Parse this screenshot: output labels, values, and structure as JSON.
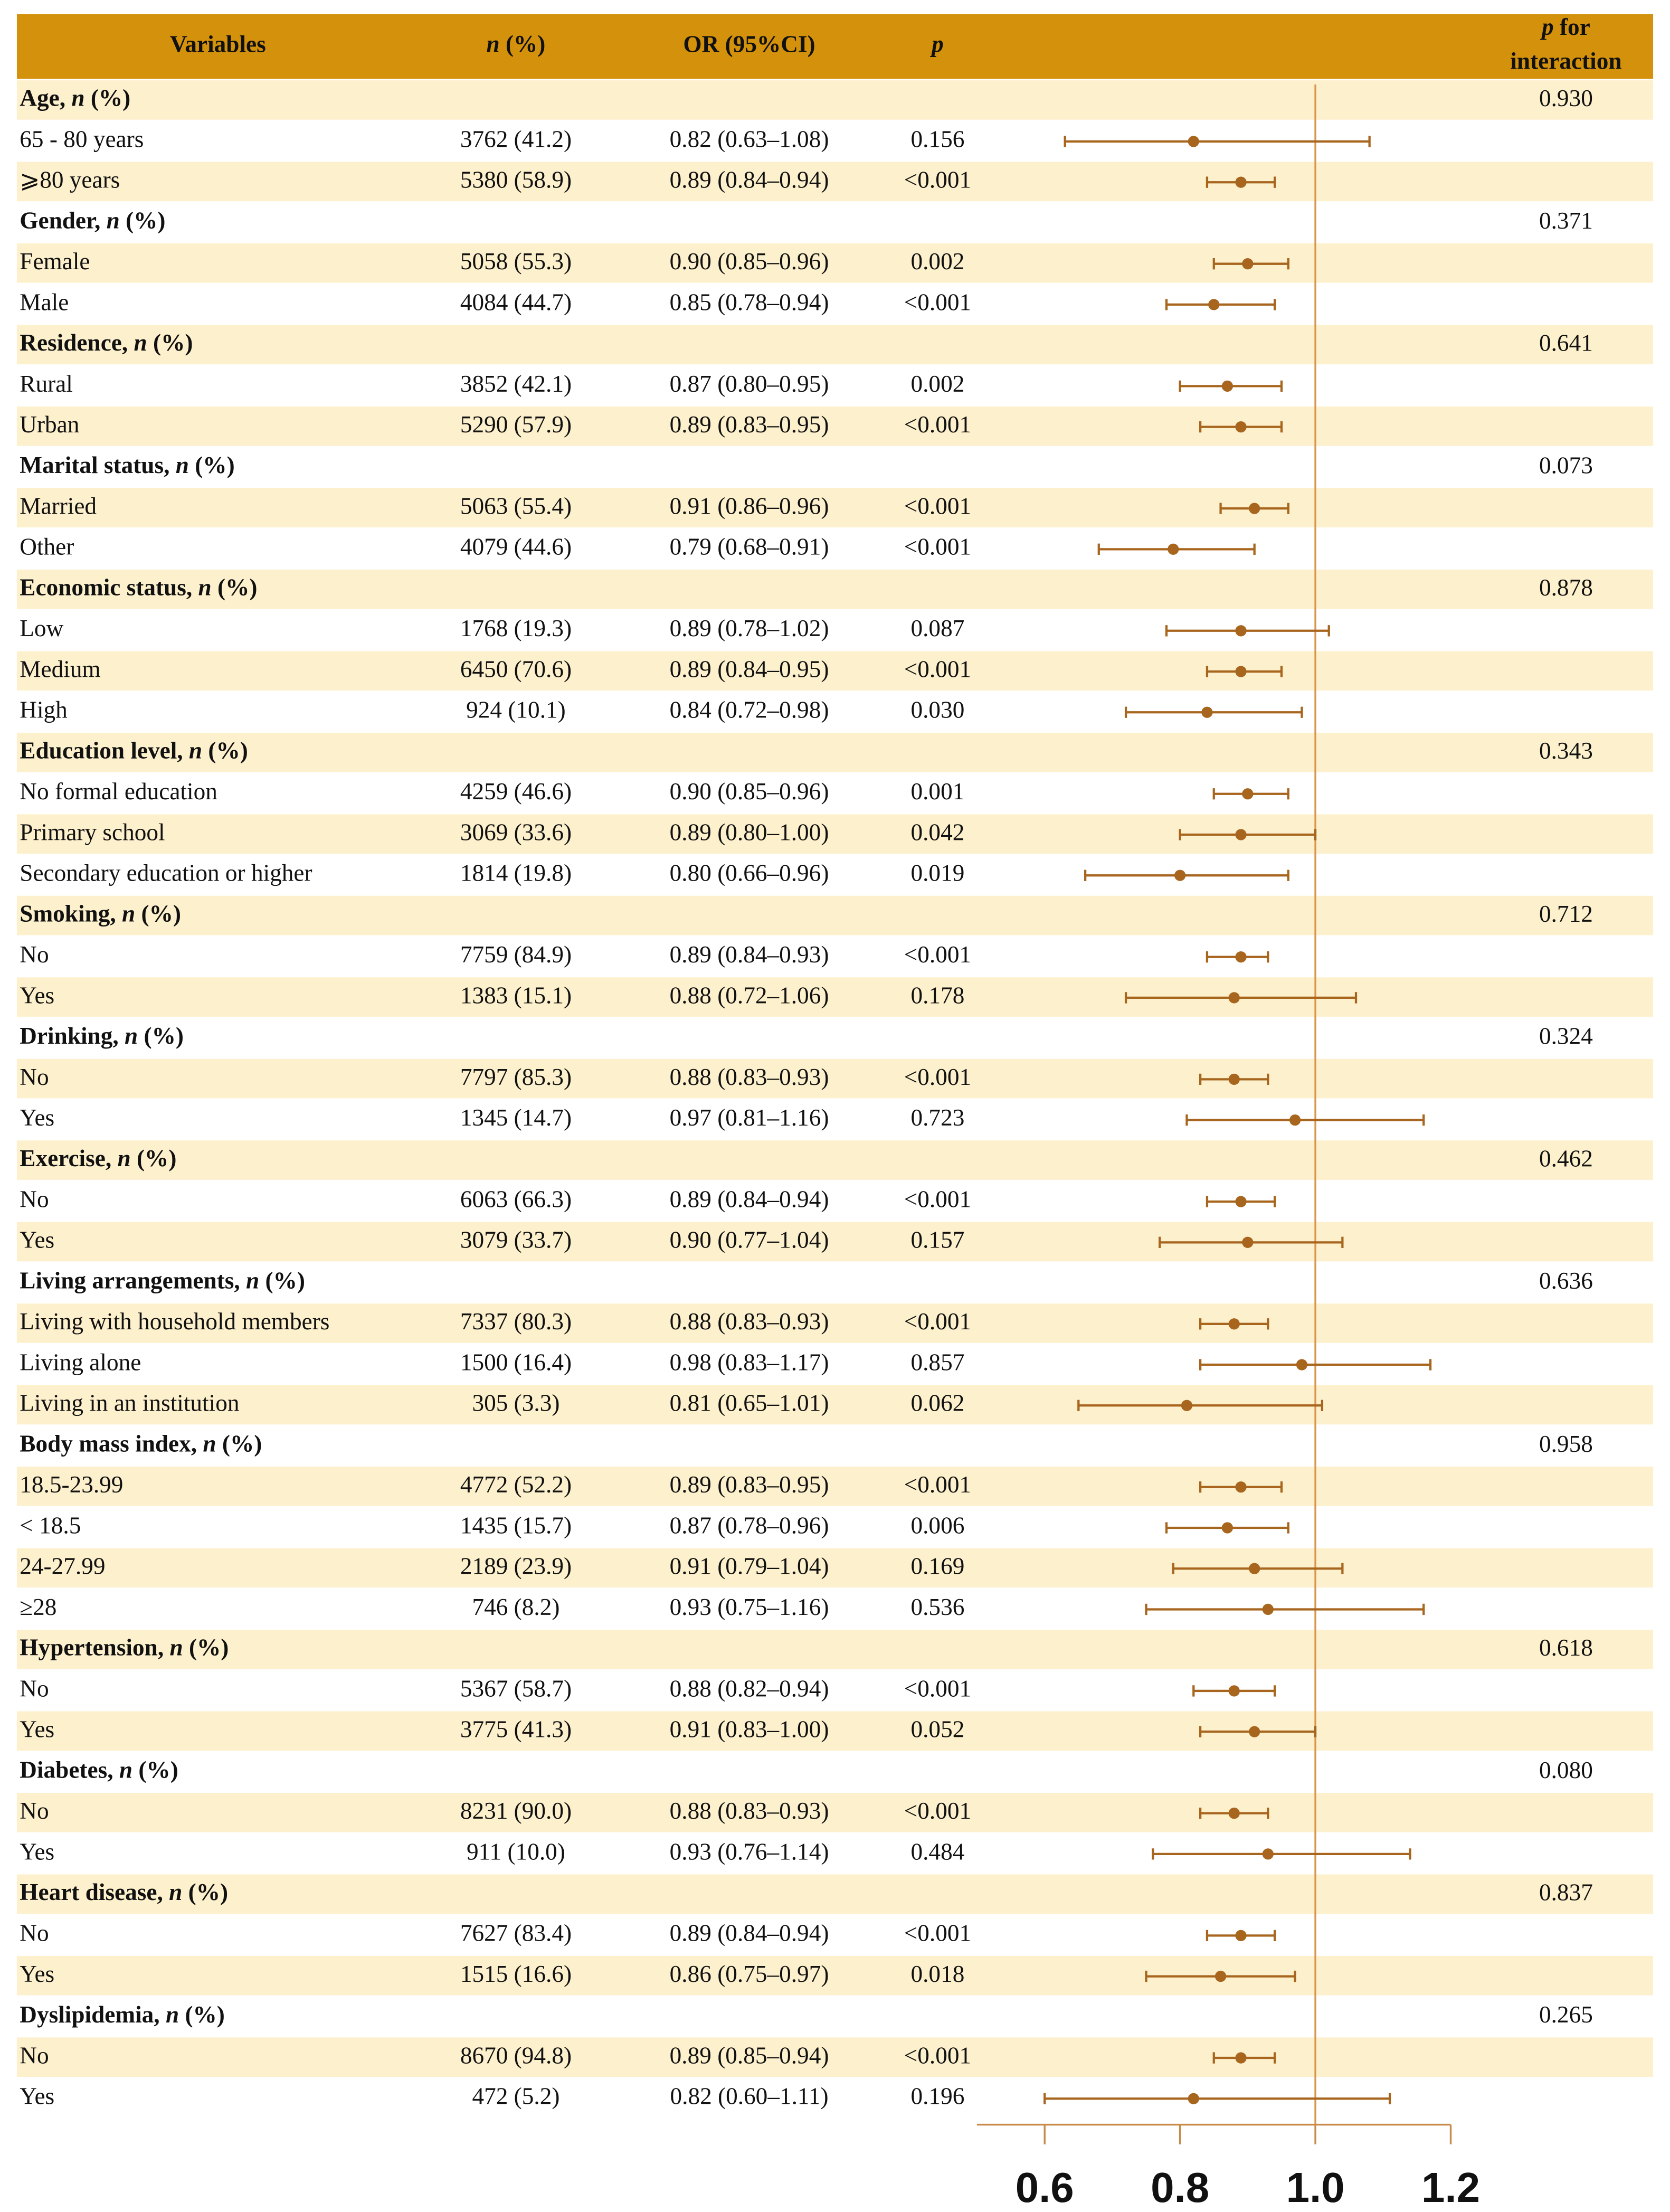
{
  "chart_data": {
    "type": "forest",
    "header": {
      "variables": "Variables",
      "n_pct": [
        "n",
        " (%)"
      ],
      "or_ci": "OR (95%CI)",
      "p": "p",
      "p_interaction": [
        [
          "p",
          " for"
        ],
        "interaction"
      ]
    },
    "groups": [
      {
        "label": [
          "Age, ",
          "n",
          " (%)"
        ],
        "p_interaction": "0.930",
        "rows": [
          {
            "label": "65 - 80 years",
            "n_pct": "3762 (41.2)",
            "or_ci": "0.82 (0.63–1.08)",
            "p": "0.156",
            "or": 0.82,
            "ci": [
              0.63,
              1.08
            ]
          },
          {
            "label": "⩾80 years",
            "n_pct": "5380 (58.9)",
            "or_ci": "0.89 (0.84–0.94)",
            "p": "<0.001",
            "or": 0.89,
            "ci": [
              0.84,
              0.94
            ]
          }
        ]
      },
      {
        "label": [
          "Gender, ",
          "n",
          " (%)"
        ],
        "p_interaction": "0.371",
        "rows": [
          {
            "label": "Female",
            "n_pct": "5058 (55.3)",
            "or_ci": "0.90 (0.85–0.96)",
            "p": "0.002",
            "or": 0.9,
            "ci": [
              0.85,
              0.96
            ]
          },
          {
            "label": "Male",
            "n_pct": "4084 (44.7)",
            "or_ci": "0.85 (0.78–0.94)",
            "p": "<0.001",
            "or": 0.85,
            "ci": [
              0.78,
              0.94
            ]
          }
        ]
      },
      {
        "label": [
          "Residence, ",
          "n",
          " (%)"
        ],
        "p_interaction": "0.641",
        "rows": [
          {
            "label": "Rural",
            "n_pct": "3852 (42.1)",
            "or_ci": "0.87 (0.80–0.95)",
            "p": "0.002",
            "or": 0.87,
            "ci": [
              0.8,
              0.95
            ]
          },
          {
            "label": "Urban",
            "n_pct": "5290 (57.9)",
            "or_ci": "0.89 (0.83–0.95)",
            "p": "<0.001",
            "or": 0.89,
            "ci": [
              0.83,
              0.95
            ]
          }
        ]
      },
      {
        "label": [
          "Marital status, ",
          "n",
          " (%)"
        ],
        "p_interaction": "0.073",
        "rows": [
          {
            "label": "Married",
            "n_pct": "5063 (55.4)",
            "or_ci": "0.91 (0.86–0.96)",
            "p": "<0.001",
            "or": 0.91,
            "ci": [
              0.86,
              0.96
            ]
          },
          {
            "label": "Other",
            "n_pct": "4079 (44.6)",
            "or_ci": "0.79 (0.68–0.91)",
            "p": "<0.001",
            "or": 0.79,
            "ci": [
              0.68,
              0.91
            ]
          }
        ]
      },
      {
        "label": [
          "Economic status, ",
          "n",
          " (%)"
        ],
        "p_interaction": "0.878",
        "rows": [
          {
            "label": "Low",
            "n_pct": "1768 (19.3)",
            "or_ci": "0.89 (0.78–1.02)",
            "p": "0.087",
            "or": 0.89,
            "ci": [
              0.78,
              1.02
            ]
          },
          {
            "label": "Medium",
            "n_pct": "6450 (70.6)",
            "or_ci": "0.89 (0.84–0.95)",
            "p": "<0.001",
            "or": 0.89,
            "ci": [
              0.84,
              0.95
            ]
          },
          {
            "label": "High",
            "n_pct": "924 (10.1)",
            "or_ci": "0.84 (0.72–0.98)",
            "p": "0.030",
            "or": 0.84,
            "ci": [
              0.72,
              0.98
            ]
          }
        ]
      },
      {
        "label": [
          "Education level, ",
          "n",
          " (%)"
        ],
        "p_interaction": "0.343",
        "rows": [
          {
            "label": "No formal education",
            "n_pct": "4259 (46.6)",
            "or_ci": "0.90 (0.85–0.96)",
            "p": "0.001",
            "or": 0.9,
            "ci": [
              0.85,
              0.96
            ]
          },
          {
            "label": "Primary school",
            "n_pct": "3069 (33.6)",
            "or_ci": "0.89 (0.80–1.00)",
            "p": "0.042",
            "or": 0.89,
            "ci": [
              0.8,
              1.0
            ]
          },
          {
            "label": "Secondary education or higher",
            "n_pct": "1814 (19.8)",
            "or_ci": "0.80 (0.66–0.96)",
            "p": "0.019",
            "or": 0.8,
            "ci": [
              0.66,
              0.96
            ]
          }
        ]
      },
      {
        "label": [
          "Smoking, ",
          "n",
          " (%)"
        ],
        "p_interaction": "0.712",
        "rows": [
          {
            "label": "No",
            "n_pct": "7759 (84.9)",
            "or_ci": "0.89 (0.84–0.93)",
            "p": "<0.001",
            "or": 0.89,
            "ci": [
              0.84,
              0.93
            ]
          },
          {
            "label": "Yes",
            "n_pct": "1383 (15.1)",
            "or_ci": "0.88 (0.72–1.06)",
            "p": "0.178",
            "or": 0.88,
            "ci": [
              0.72,
              1.06
            ]
          }
        ]
      },
      {
        "label": [
          "Drinking, ",
          "n",
          " (%)"
        ],
        "p_interaction": "0.324",
        "rows": [
          {
            "label": "No",
            "n_pct": "7797 (85.3)",
            "or_ci": "0.88 (0.83–0.93)",
            "p": "<0.001",
            "or": 0.88,
            "ci": [
              0.83,
              0.93
            ]
          },
          {
            "label": "Yes",
            "n_pct": "1345 (14.7)",
            "or_ci": "0.97 (0.81–1.16)",
            "p": "0.723",
            "or": 0.97,
            "ci": [
              0.81,
              1.16
            ]
          }
        ]
      },
      {
        "label": [
          "Exercise, ",
          "n",
          " (%)"
        ],
        "p_interaction": "0.462",
        "rows": [
          {
            "label": "No",
            "n_pct": "6063 (66.3)",
            "or_ci": "0.89 (0.84–0.94)",
            "p": "<0.001",
            "or": 0.89,
            "ci": [
              0.84,
              0.94
            ]
          },
          {
            "label": "Yes",
            "n_pct": "3079 (33.7)",
            "or_ci": "0.90 (0.77–1.04)",
            "p": "0.157",
            "or": 0.9,
            "ci": [
              0.77,
              1.04
            ]
          }
        ]
      },
      {
        "label": [
          "Living arrangements, ",
          "n",
          " (%)"
        ],
        "p_interaction": "0.636",
        "rows": [
          {
            "label": "Living with household members",
            "n_pct": "7337 (80.3)",
            "or_ci": "0.88 (0.83–0.93)",
            "p": "<0.001",
            "or": 0.88,
            "ci": [
              0.83,
              0.93
            ]
          },
          {
            "label": "Living alone",
            "n_pct": "1500 (16.4)",
            "or_ci": "0.98 (0.83–1.17)",
            "p": "0.857",
            "or": 0.98,
            "ci": [
              0.83,
              1.17
            ]
          },
          {
            "label": "Living in an institution",
            "n_pct": "305 (3.3)",
            "or_ci": "0.81 (0.65–1.01)",
            "p": "0.062",
            "or": 0.81,
            "ci": [
              0.65,
              1.01
            ]
          }
        ]
      },
      {
        "label": [
          "Body mass index, ",
          "n",
          " (%)"
        ],
        "p_interaction": "0.958",
        "rows": [
          {
            "label": "18.5-23.99",
            "n_pct": "4772 (52.2)",
            "or_ci": "0.89 (0.83–0.95)",
            "p": "<0.001",
            "or": 0.89,
            "ci": [
              0.83,
              0.95
            ]
          },
          {
            "label": "< 18.5",
            "n_pct": "1435 (15.7)",
            "or_ci": "0.87 (0.78–0.96)",
            "p": "0.006",
            "or": 0.87,
            "ci": [
              0.78,
              0.96
            ]
          },
          {
            "label": "24-27.99",
            "n_pct": "2189 (23.9)",
            "or_ci": "0.91 (0.79–1.04)",
            "p": "0.169",
            "or": 0.91,
            "ci": [
              0.79,
              1.04
            ]
          },
          {
            "label": "≥28",
            "n_pct": "746 (8.2)",
            "or_ci": "0.93 (0.75–1.16)",
            "p": "0.536",
            "or": 0.93,
            "ci": [
              0.75,
              1.16
            ]
          }
        ]
      },
      {
        "label": [
          "Hypertension, ",
          "n",
          " (%)"
        ],
        "p_interaction": "0.618",
        "rows": [
          {
            "label": "No",
            "n_pct": "5367 (58.7)",
            "or_ci": "0.88 (0.82–0.94)",
            "p": "<0.001",
            "or": 0.88,
            "ci": [
              0.82,
              0.94
            ]
          },
          {
            "label": "Yes",
            "n_pct": "3775 (41.3)",
            "or_ci": "0.91 (0.83–1.00)",
            "p": "0.052",
            "or": 0.91,
            "ci": [
              0.83,
              1.0
            ]
          }
        ]
      },
      {
        "label": [
          "Diabetes, ",
          "n",
          " (%)"
        ],
        "p_interaction": "0.080",
        "rows": [
          {
            "label": "No",
            "n_pct": "8231 (90.0)",
            "or_ci": "0.88 (0.83–0.93)",
            "p": "<0.001",
            "or": 0.88,
            "ci": [
              0.83,
              0.93
            ]
          },
          {
            "label": "Yes",
            "n_pct": "911 (10.0)",
            "or_ci": "0.93 (0.76–1.14)",
            "p": "0.484",
            "or": 0.93,
            "ci": [
              0.76,
              1.14
            ]
          }
        ]
      },
      {
        "label": [
          "Heart disease, ",
          "n",
          " (%)"
        ],
        "p_interaction": "0.837",
        "rows": [
          {
            "label": "No",
            "n_pct": "7627 (83.4)",
            "or_ci": "0.89 (0.84–0.94)",
            "p": "<0.001",
            "or": 0.89,
            "ci": [
              0.84,
              0.94
            ]
          },
          {
            "label": "Yes",
            "n_pct": "1515 (16.6)",
            "or_ci": "0.86 (0.75–0.97)",
            "p": "0.018",
            "or": 0.86,
            "ci": [
              0.75,
              0.97
            ]
          }
        ]
      },
      {
        "label": [
          "Dyslipidemia, ",
          "n",
          " (%)"
        ],
        "p_interaction": "0.265",
        "rows": [
          {
            "label": "No",
            "n_pct": "8670 (94.8)",
            "or_ci": "0.89 (0.85–0.94)",
            "p": "<0.001",
            "or": 0.89,
            "ci": [
              0.85,
              0.94
            ]
          },
          {
            "label": "Yes",
            "n_pct": "472 (5.2)",
            "or_ci": "0.82 (0.60–1.11)",
            "p": "0.196",
            "or": 0.82,
            "ci": [
              0.6,
              1.11
            ]
          }
        ]
      }
    ],
    "xlim": [
      0.5,
      1.2
    ],
    "xticks": [
      0.6,
      0.8,
      {
        "value": 1,
        "label": "1.0"
      },
      1.2
    ],
    "reference": 1,
    "color": "#a8651e"
  }
}
